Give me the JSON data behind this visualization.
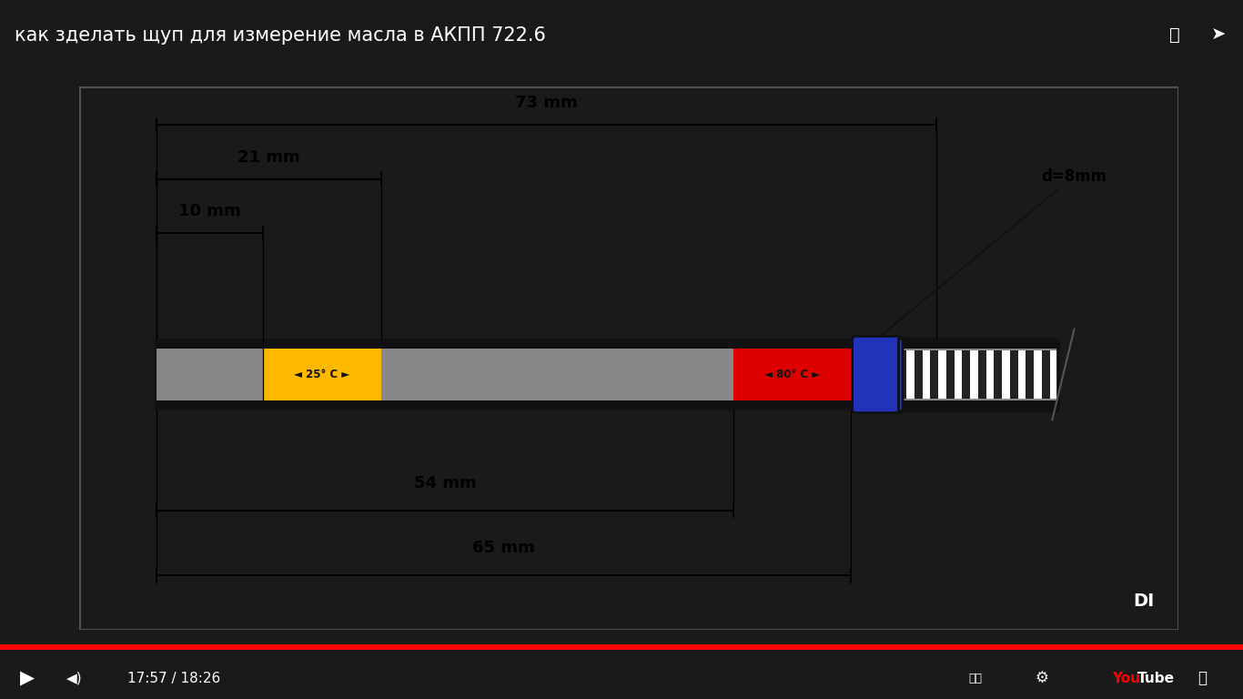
{
  "title": "как зделать щуп для измерение масла в АКПП 722.6",
  "bg_color": "#1a1a1a",
  "panel_bg": "#f5f5f5",
  "panel_border": "#555555",
  "title_color": "#ffffff",
  "title_fontsize": 15,
  "rod_gray": "#888888",
  "rod_black": "#111111",
  "yellow_color": "#FFB800",
  "red_color": "#DD0000",
  "blue_color": "#2233BB",
  "label_25c": "◄ 25° C ►",
  "label_80c": "◄ 80° C ►",
  "label_d8": "d=8mm",
  "dim_73_label": "73 mm",
  "dim_21_label": "21 mm",
  "dim_10_label": "10 mm",
  "dim_54_label": "54 mm",
  "dim_65_label": "65 mm",
  "time_text": "17:57 / 18:26",
  "progress_color": "#FF0000",
  "bottom_bg": "#111111"
}
